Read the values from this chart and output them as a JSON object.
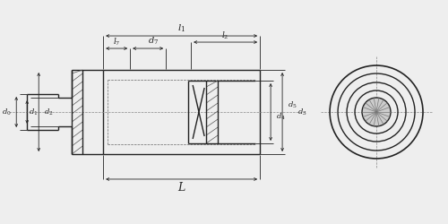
{
  "bg_color": "#eeeeee",
  "line_color": "#222222",
  "dim_color": "#222222",
  "fig_width": 5.0,
  "fig_height": 2.5,
  "dpi": 100,
  "lw_main": 1.0,
  "lw_dim": 0.6,
  "lw_thin": 0.5
}
